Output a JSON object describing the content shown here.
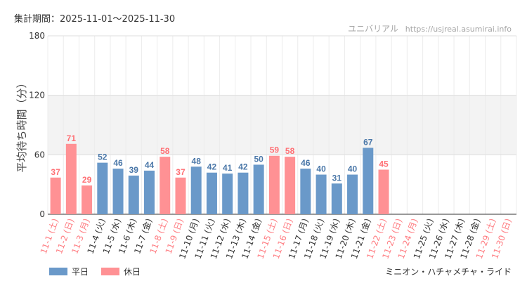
{
  "header": {
    "period": "集計期間：2025-11-01～2025-11-30",
    "source_name": "ユニバリアル",
    "source_url": "https://usjreal.asumirai.info"
  },
  "attraction_name": "ミニオン・ハチャメチャ・ライド",
  "chart_data": {
    "type": "bar",
    "ylabel": "平均待ち時間（分）",
    "ylim": [
      0,
      180
    ],
    "yticks": [
      0,
      60,
      120,
      180
    ],
    "highlight_band": [
      120,
      180
    ],
    "grid": true,
    "legend": [
      {
        "name": "平日",
        "color": "#6a99c9"
      },
      {
        "name": "休日",
        "color": "#ff9194"
      }
    ],
    "categories": [
      "11-1 (土)",
      "11-2 (日)",
      "11-3 (月)",
      "11-4 (火)",
      "11-5 (水)",
      "11-6 (木)",
      "11-7 (金)",
      "11-8 (土)",
      "11-9 (日)",
      "11-10 (月)",
      "11-11 (火)",
      "11-12 (水)",
      "11-13 (木)",
      "11-14 (金)",
      "11-15 (土)",
      "11-16 (日)",
      "11-17 (月)",
      "11-18 (火)",
      "11-19 (水)",
      "11-20 (木)",
      "11-21 (金)",
      "11-22 (土)",
      "11-23 (日)",
      "11-24 (月)",
      "11-25 (火)",
      "11-26 (水)",
      "11-27 (木)",
      "11-28 (金)",
      "11-29 (土)",
      "11-30 (日)"
    ],
    "values": [
      37,
      71,
      29,
      52,
      46,
      39,
      44,
      58,
      37,
      48,
      42,
      41,
      42,
      50,
      59,
      58,
      46,
      40,
      31,
      40,
      67,
      45,
      null,
      null,
      null,
      null,
      null,
      null,
      null,
      null
    ],
    "day_type": [
      "holiday",
      "holiday",
      "holiday",
      "weekday",
      "weekday",
      "weekday",
      "weekday",
      "holiday",
      "holiday",
      "weekday",
      "weekday",
      "weekday",
      "weekday",
      "weekday",
      "holiday",
      "holiday",
      "weekday",
      "weekday",
      "weekday",
      "weekday",
      "weekday",
      "holiday",
      "holiday",
      "holiday",
      "weekday",
      "weekday",
      "weekday",
      "weekday",
      "holiday",
      "holiday"
    ],
    "colors": {
      "weekday": "#6a99c9",
      "holiday": "#ff9194",
      "weekday_label": "#4a77a8",
      "holiday_label": "#ff6f74",
      "axis_label_weekday": "#333333",
      "axis_label_holiday": "#ff7b80"
    }
  }
}
